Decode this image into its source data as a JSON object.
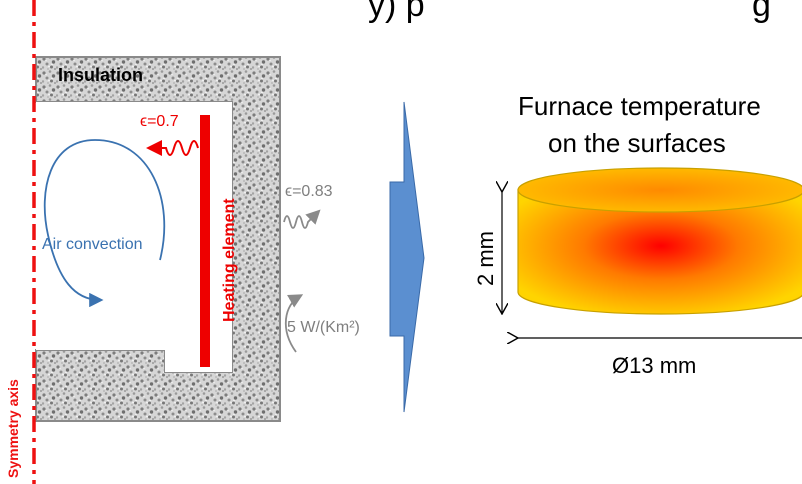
{
  "labels": {
    "top_cut": "y) p",
    "top_cut_right": "g",
    "insulation": "Insulation",
    "emissivity_heater": "ϵ=0.7",
    "air_convection": "Air convection",
    "heating_element": "Heating element",
    "emissivity_outer": "ϵ=0.83",
    "heat_transfer_coeff": "5 W/(Km²)",
    "symmetry_axis": "Symmetry axis",
    "furnace_temp_line1": "Furnace temperature",
    "furnace_temp_line2": "on the surfaces",
    "height_dim": "2 mm",
    "diameter_dim": "Ø13 mm"
  },
  "colors": {
    "symmetry_red": "#ee1111",
    "heater_red": "#ee0000",
    "convection_blue": "#3a72b0",
    "arrow_blue": "#5b8fd0",
    "gray_text": "#7f7f7f",
    "insulation_gray": "#8a8a8a",
    "cylinder_edge": "#c8a000"
  }
}
